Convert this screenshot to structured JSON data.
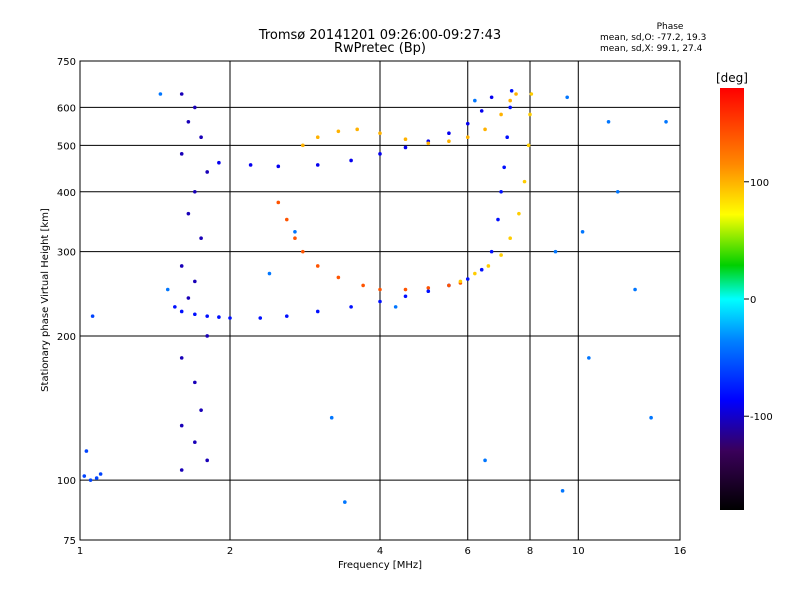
{
  "chart_data": {
    "type": "scatter",
    "title": "Tromsø 20141201 09:26:00-09:27:43",
    "subtitle": "RwPretec (Bp)",
    "xlabel": "Frequency [MHz]",
    "ylabel": "Stationary phase Virtual Height [km]",
    "x_scale": "log",
    "y_scale": "log",
    "xlim": [
      1,
      16
    ],
    "ylim": [
      75,
      750
    ],
    "x_ticks": [
      1,
      2,
      4,
      6,
      8,
      10,
      16
    ],
    "y_ticks": [
      75,
      100,
      200,
      300,
      400,
      500,
      600,
      750
    ],
    "grid": true,
    "phase_stats": {
      "title": "Phase",
      "line_o": "mean, sd,O: -77.2, 19.3",
      "line_x": "mean, sd,X:  99.1, 27.4"
    },
    "colorbar": {
      "label": "[deg]",
      "range": [
        -180,
        180
      ],
      "ticks": [
        100,
        0,
        -100
      ],
      "colors": [
        "#ff0000",
        "#ff8800",
        "#ffff00",
        "#00d000",
        "#00ffff",
        "#0080ff",
        "#0000ff",
        "#000000"
      ]
    },
    "series": [
      {
        "description": "E/F1 trace with O-mode phase (blue/cyan)",
        "phase_deg": -80,
        "points": [
          [
            1.55,
            230
          ],
          [
            1.6,
            225
          ],
          [
            1.7,
            222
          ],
          [
            1.8,
            220
          ],
          [
            1.9,
            219
          ],
          [
            2.0,
            218
          ],
          [
            2.3,
            218
          ],
          [
            2.6,
            220
          ],
          [
            3.0,
            225
          ],
          [
            3.5,
            230
          ],
          [
            4.0,
            236
          ],
          [
            4.5,
            242
          ],
          [
            5.0,
            248
          ],
          [
            5.5,
            255
          ],
          [
            6.0,
            263
          ],
          [
            6.4,
            275
          ],
          [
            6.7,
            300
          ],
          [
            6.9,
            350
          ],
          [
            7.0,
            400
          ],
          [
            7.1,
            450
          ],
          [
            7.2,
            520
          ],
          [
            7.3,
            600
          ],
          [
            7.35,
            650
          ]
        ]
      },
      {
        "description": "Upper F2 trace (O-mode)",
        "phase_deg": -90,
        "points": [
          [
            1.9,
            460
          ],
          [
            2.2,
            455
          ],
          [
            2.5,
            452
          ],
          [
            3.0,
            455
          ],
          [
            3.5,
            465
          ],
          [
            4.0,
            480
          ],
          [
            4.5,
            495
          ],
          [
            5.0,
            510
          ],
          [
            5.5,
            530
          ],
          [
            6.0,
            555
          ],
          [
            6.4,
            590
          ],
          [
            6.7,
            630
          ]
        ]
      },
      {
        "description": "Lower trace with X-mode phase (orange)",
        "phase_deg": 140,
        "points": [
          [
            2.5,
            380
          ],
          [
            2.6,
            350
          ],
          [
            2.7,
            320
          ],
          [
            2.8,
            300
          ],
          [
            3.0,
            280
          ],
          [
            3.3,
            265
          ],
          [
            3.7,
            255
          ],
          [
            4.0,
            250
          ],
          [
            4.5,
            250
          ],
          [
            5.0,
            252
          ],
          [
            5.5,
            255
          ],
          [
            5.8,
            258
          ]
        ]
      },
      {
        "description": "Lower trace continuation (yellow/green)",
        "phase_deg": 90,
        "points": [
          [
            5.8,
            260
          ],
          [
            6.2,
            270
          ],
          [
            6.6,
            280
          ],
          [
            7.0,
            295
          ],
          [
            7.3,
            320
          ],
          [
            7.6,
            360
          ],
          [
            7.8,
            420
          ],
          [
            7.95,
            500
          ],
          [
            8.0,
            580
          ],
          [
            8.05,
            640
          ]
        ]
      },
      {
        "description": "Upper X trace (yellow)",
        "phase_deg": 100,
        "points": [
          [
            2.8,
            500
          ],
          [
            3.0,
            520
          ],
          [
            3.3,
            535
          ],
          [
            3.6,
            540
          ],
          [
            4.0,
            530
          ],
          [
            4.5,
            515
          ],
          [
            5.0,
            505
          ],
          [
            5.5,
            510
          ],
          [
            6.0,
            520
          ],
          [
            6.5,
            540
          ],
          [
            7.0,
            580
          ],
          [
            7.3,
            620
          ],
          [
            7.5,
            640
          ]
        ]
      },
      {
        "description": "Spread-F band near 1.6-1.9 MHz (blue)",
        "phase_deg": -105,
        "points": [
          [
            1.6,
            640
          ],
          [
            1.7,
            600
          ],
          [
            1.65,
            560
          ],
          [
            1.75,
            520
          ],
          [
            1.6,
            480
          ],
          [
            1.8,
            440
          ],
          [
            1.7,
            400
          ],
          [
            1.65,
            360
          ],
          [
            1.75,
            320
          ],
          [
            1.6,
            280
          ],
          [
            1.7,
            260
          ],
          [
            1.65,
            240
          ],
          [
            1.8,
            200
          ],
          [
            1.6,
            180
          ],
          [
            1.7,
            160
          ],
          [
            1.75,
            140
          ],
          [
            1.6,
            130
          ],
          [
            1.7,
            120
          ],
          [
            1.8,
            110
          ],
          [
            1.6,
            105
          ]
        ]
      },
      {
        "description": "Low-height trace near 1 MHz",
        "phase_deg": -60,
        "points": [
          [
            1.02,
            102
          ],
          [
            1.05,
            100
          ],
          [
            1.08,
            101
          ],
          [
            1.1,
            103
          ],
          [
            1.03,
            115
          ],
          [
            1.06,
            220
          ]
        ]
      },
      {
        "description": "Scattered noise points",
        "phase_deg": -40,
        "points": [
          [
            1.45,
            640
          ],
          [
            1.5,
            250
          ],
          [
            3.2,
            135
          ],
          [
            6.5,
            110
          ],
          [
            9.0,
            300
          ],
          [
            9.5,
            630
          ],
          [
            10.5,
            180
          ],
          [
            11.5,
            560
          ],
          [
            12.0,
            400
          ],
          [
            13.0,
            250
          ],
          [
            14.0,
            135
          ],
          [
            15.0,
            560
          ],
          [
            4.3,
            230
          ],
          [
            6.2,
            620
          ],
          [
            2.4,
            270
          ],
          [
            2.7,
            330
          ],
          [
            3.4,
            90
          ],
          [
            9.3,
            95
          ],
          [
            10.2,
            330
          ]
        ]
      }
    ]
  }
}
